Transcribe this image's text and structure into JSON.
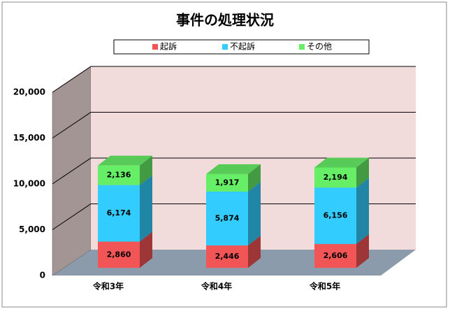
{
  "chart_data": {
    "type": "bar3d_stacked",
    "title": "事件の処理状況",
    "categories": [
      "令和3年",
      "令和4年",
      "令和5年"
    ],
    "series": [
      {
        "name": "起訴",
        "color": "#f25555",
        "values": [
          2860,
          2446,
          2606
        ],
        "value_labels": [
          "2,860",
          "2,446",
          "2,606"
        ]
      },
      {
        "name": "不起訴",
        "color": "#33ccff",
        "values": [
          6174,
          5874,
          6156
        ],
        "value_labels": [
          "6,174",
          "5,874",
          "6,156"
        ]
      },
      {
        "name": "その他",
        "color": "#66ee66",
        "values": [
          2136,
          1917,
          2194
        ],
        "value_labels": [
          "2,136",
          "1,917",
          "2,194"
        ]
      }
    ],
    "ylim": [
      0,
      20000
    ],
    "yticks": [
      0,
      {
        "value": 5000,
        "label": "5,000"
      },
      {
        "value": 10000,
        "label": "10,000"
      },
      {
        "value": 15000,
        "label": "15,000"
      },
      {
        "value": 20000,
        "label": "20,000"
      }
    ],
    "grid": true
  }
}
